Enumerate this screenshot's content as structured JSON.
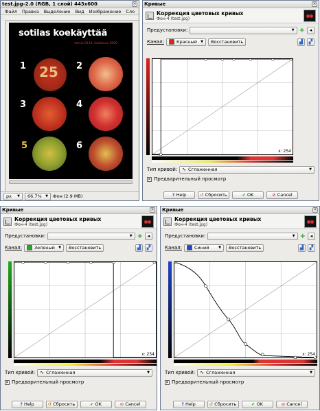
{
  "image_window": {
    "title": "test.jpg-2.0 (RGB, 1 слой) 443x600",
    "menu": [
      "Файл",
      "Правка",
      "Выделение",
      "Вид",
      "Изображение",
      "Сло"
    ],
    "image_heading": "sotilas koekäyttää",
    "image_subheading": "versio 0110, testikuva 2000",
    "plate_numbers": [
      "1",
      "2",
      "3",
      "4",
      "5",
      "6"
    ],
    "plate1_value": "25",
    "status": {
      "unit": "px",
      "zoom": "66.7%",
      "info": "Фон (2.9 MB)"
    }
  },
  "curves_common": {
    "window_title": "Кривые",
    "header_title": "Коррекция цветовых кривых",
    "header_sub": "Фон-4 (test.jpg)",
    "presets_label": "Предустановки:",
    "channel_label": "Канал:",
    "reset_channel": "Восстановить",
    "curve_type_label": "Тип кривой:",
    "curve_type_value": "Сглаженная",
    "preview_label": "Предварительный просмотр",
    "coord": "x: 254",
    "buttons": {
      "help": "Help",
      "reset": "Сбросить",
      "ok": "OK",
      "cancel": "Cancel"
    }
  },
  "dialogs": [
    {
      "channel": "Красный",
      "channel_color": "#dd2222"
    },
    {
      "channel": "Зеленый",
      "channel_color": "#22aa22"
    },
    {
      "channel": "Синий",
      "channel_color": "#2244cc"
    }
  ],
  "icons": [
    "help-icon",
    "reset-icon",
    "ok-icon",
    "cancel-icon",
    "plus-icon",
    "linear-histogram-icon",
    "log-histogram-icon",
    "curve-icon",
    "checkbox-checked-icon"
  ]
}
